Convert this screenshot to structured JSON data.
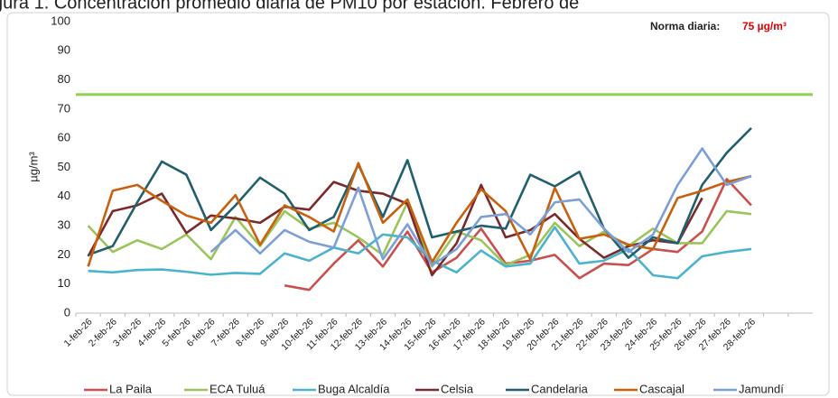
{
  "chart_data": {
    "type": "line",
    "title": "gura 1. Concentración promedio diaria de PM10 por estación. Febrero de",
    "y_label": "µg/m³",
    "categories": [
      "1-feb-26",
      "2-feb-26",
      "3-feb-26",
      "4-feb-26",
      "5-feb-26",
      "6-feb-26",
      "7-feb-26",
      "8-feb-26",
      "9-feb-26",
      "10-feb-26",
      "11-feb-26",
      "12-feb-26",
      "13-feb-26",
      "14-feb-26",
      "15-feb-26",
      "16-feb-26",
      "17-feb-26",
      "18-feb-26",
      "19-feb-26",
      "20-feb-26",
      "21-feb-26",
      "22-feb-26",
      "23-feb-26",
      "24-feb-26",
      "25-feb-26",
      "26-feb-26",
      "27-feb-26",
      "28-feb-26",
      null,
      null
    ],
    "series": [
      {
        "name": "La Paila",
        "color": "#c9504f",
        "values": [
          null,
          null,
          null,
          null,
          null,
          null,
          null,
          null,
          9.5,
          8,
          17,
          25,
          16,
          28,
          14,
          19,
          29,
          17,
          18,
          20,
          12,
          17,
          16.5,
          22,
          21,
          28,
          46,
          37,
          null,
          null
        ]
      },
      {
        "name": "ECA Tuluá",
        "color": "#9bc55a",
        "values": [
          30,
          21,
          25,
          22,
          27,
          18.5,
          33,
          23,
          35,
          29,
          31,
          26,
          20,
          38,
          16,
          28,
          25,
          16.5,
          20,
          31,
          23,
          28,
          23,
          29,
          24,
          24,
          35,
          34,
          null,
          null
        ]
      },
      {
        "name": "Buga Alcaldía",
        "color": "#4bb3cc",
        "values": [
          14.5,
          14,
          14.8,
          15,
          14.2,
          13.2,
          13.8,
          13.5,
          20.5,
          18,
          22.5,
          20.5,
          27,
          26,
          18,
          14,
          21.5,
          16,
          17,
          29.5,
          17,
          18,
          22,
          13,
          12,
          19.5,
          21,
          22,
          null,
          null
        ]
      },
      {
        "name": "Celsia",
        "color": "#7b2a2a",
        "values": [
          19.5,
          35,
          37,
          41,
          27.5,
          33.5,
          32.5,
          31,
          36.5,
          35.5,
          45,
          42,
          41,
          37.5,
          13,
          24,
          44,
          26,
          28.5,
          34,
          25.5,
          19,
          23,
          25,
          24,
          39.5,
          null,
          null,
          null,
          null
        ]
      },
      {
        "name": "Candelaria",
        "color": "#215f6c",
        "values": [
          20,
          23,
          38,
          52,
          47.5,
          28.5,
          37,
          46.5,
          41,
          28.5,
          33,
          51,
          33,
          52.5,
          26,
          28,
          30,
          29,
          47.5,
          43.5,
          48.5,
          29,
          19,
          26,
          24,
          44,
          55,
          63.5,
          null,
          null
        ]
      },
      {
        "name": "Cascajal",
        "color": "#c8610f",
        "values": [
          16,
          42,
          44,
          38.5,
          33.5,
          31,
          40.5,
          23.5,
          37,
          33,
          28,
          51.5,
          31,
          39,
          17.5,
          31,
          42.5,
          35,
          18.5,
          43,
          25.5,
          27,
          23.5,
          22,
          39.5,
          42,
          45,
          47,
          null,
          null
        ]
      },
      {
        "name": "Jamundí",
        "color": "#7c9fd6",
        "values": [
          null,
          null,
          null,
          null,
          null,
          21,
          28.5,
          20.5,
          28.5,
          24.5,
          22.5,
          43,
          18.5,
          30.5,
          16.5,
          22,
          33,
          34,
          27,
          38,
          39,
          29,
          21,
          27,
          44,
          56.5,
          44,
          47,
          null,
          null
        ]
      }
    ],
    "norm": {
      "value": 75,
      "text": "Norma diaria:",
      "label": "75 µg/m³",
      "color": "#92d050",
      "label_color": "#e00000"
    },
    "ylim": [
      0,
      100
    ],
    "yticks": [
      0,
      10,
      20,
      30,
      40,
      50,
      60,
      70,
      80,
      90,
      100
    ],
    "legend": "bottom"
  }
}
